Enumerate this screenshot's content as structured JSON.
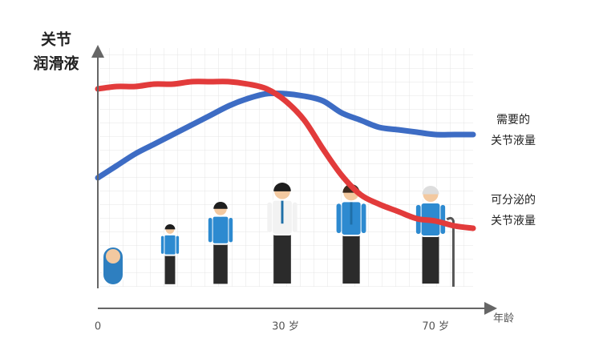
{
  "chart_data": {
    "type": "line",
    "ylabel": [
      "关节",
      "润滑液"
    ],
    "xlabel": "年龄",
    "categories": [
      "0",
      null,
      null,
      null,
      null,
      null,
      null,
      null,
      null,
      null,
      "30 岁",
      null,
      null,
      null,
      null,
      null,
      null,
      null,
      "70 岁",
      null,
      null
    ],
    "ylim": [
      0,
      100
    ],
    "grid": true,
    "series": [
      {
        "label": [
          "需要的",
          "关节液量"
        ],
        "color": "#3d6cc4",
        "values": [
          46,
          51,
          56,
          60,
          64,
          68,
          72,
          76,
          79,
          81,
          81,
          80,
          78,
          73,
          70,
          67,
          66,
          65,
          64,
          64,
          64
        ]
      },
      {
        "label": [
          "可分泌的",
          "关节液量"
        ],
        "color": "#e23b3b",
        "values": [
          83,
          84,
          84,
          85,
          85,
          86,
          86,
          86,
          85,
          83,
          78,
          70,
          58,
          47,
          39,
          35,
          32,
          29,
          28,
          26,
          25
        ]
      }
    ]
  }
}
